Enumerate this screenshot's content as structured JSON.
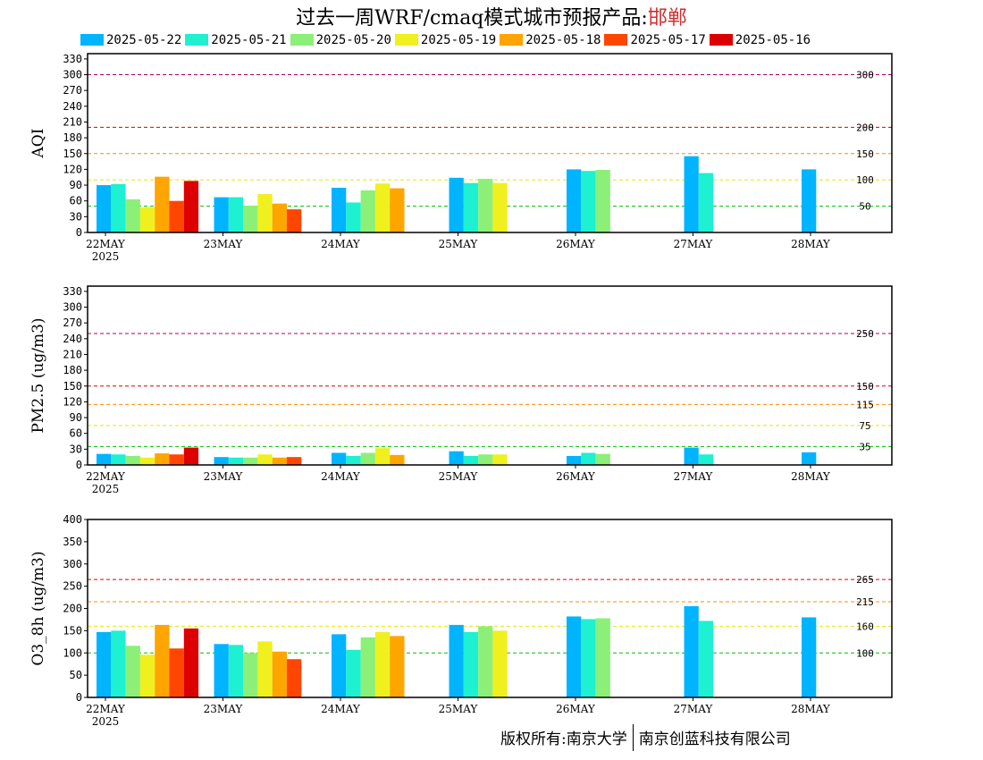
{
  "title": {
    "main": "过去一周WRF/cmaq模式城市预报产品:",
    "city": "邯郸"
  },
  "legend": [
    {
      "label": "2025-05-22",
      "color": "#00b4ff"
    },
    {
      "label": "2025-05-21",
      "color": "#1ef0d2"
    },
    {
      "label": "2025-05-20",
      "color": "#8cf078"
    },
    {
      "label": "2025-05-19",
      "color": "#f0f01e"
    },
    {
      "label": "2025-05-18",
      "color": "#ffa500"
    },
    {
      "label": "2025-05-17",
      "color": "#ff4600"
    },
    {
      "label": "2025-05-16",
      "color": "#dc0000"
    }
  ],
  "x_labels": [
    "22MAY",
    "23MAY",
    "24MAY",
    "25MAY",
    "26MAY",
    "27MAY",
    "28MAY"
  ],
  "x_year": "2025",
  "chart_data": [
    {
      "type": "bar",
      "ylabel": "AQI",
      "ylim": [
        0,
        340
      ],
      "yticks": [
        0,
        30,
        60,
        90,
        120,
        150,
        180,
        210,
        240,
        270,
        300,
        330
      ],
      "categories": [
        "22MAY",
        "23MAY",
        "24MAY",
        "25MAY",
        "26MAY",
        "27MAY",
        "28MAY"
      ],
      "thresholds": [
        {
          "value": 300,
          "label": "300",
          "color": "#b0005a"
        },
        {
          "value": 200,
          "label": "200",
          "color": "#e00000"
        },
        {
          "value": 150,
          "label": "150",
          "color": "#ff8c00"
        },
        {
          "value": 100,
          "label": "100",
          "color": "#e8e800"
        },
        {
          "value": 50,
          "label": "50",
          "color": "#00c000"
        }
      ],
      "series": [
        {
          "name": "2025-05-22",
          "values": [
            90,
            67,
            85,
            104,
            120,
            145,
            120
          ]
        },
        {
          "name": "2025-05-21",
          "values": [
            92,
            67,
            57,
            94,
            117,
            113,
            null
          ]
        },
        {
          "name": "2025-05-20",
          "values": [
            63,
            51,
            80,
            102,
            119,
            null,
            null
          ]
        },
        {
          "name": "2025-05-19",
          "values": [
            48,
            73,
            93,
            94,
            null,
            null,
            null
          ]
        },
        {
          "name": "2025-05-18",
          "values": [
            106,
            55,
            84,
            null,
            null,
            null,
            null
          ]
        },
        {
          "name": "2025-05-17",
          "values": [
            60,
            44,
            null,
            null,
            null,
            null,
            null
          ]
        },
        {
          "name": "2025-05-16",
          "values": [
            98,
            null,
            null,
            null,
            null,
            null,
            null
          ]
        }
      ]
    },
    {
      "type": "bar",
      "ylabel": "PM2.5 (ug/m3)",
      "ylim": [
        0,
        340
      ],
      "yticks": [
        0,
        30,
        60,
        90,
        120,
        150,
        180,
        210,
        240,
        270,
        300,
        330
      ],
      "categories": [
        "22MAY",
        "23MAY",
        "24MAY",
        "25MAY",
        "26MAY",
        "27MAY",
        "28MAY"
      ],
      "thresholds": [
        {
          "value": 250,
          "label": "250",
          "color": "#b0005a"
        },
        {
          "value": 150,
          "label": "150",
          "color": "#e00000"
        },
        {
          "value": 115,
          "label": "115",
          "color": "#ff8c00"
        },
        {
          "value": 75,
          "label": "75",
          "color": "#e8e800"
        },
        {
          "value": 35,
          "label": "35",
          "color": "#00c000"
        }
      ],
      "series": [
        {
          "name": "2025-05-22",
          "values": [
            21,
            15,
            23,
            26,
            17,
            33,
            24
          ]
        },
        {
          "name": "2025-05-21",
          "values": [
            20,
            14,
            17,
            17,
            23,
            20,
            null
          ]
        },
        {
          "name": "2025-05-20",
          "values": [
            17,
            14,
            23,
            20,
            21,
            null,
            null
          ]
        },
        {
          "name": "2025-05-19",
          "values": [
            14,
            20,
            32,
            20,
            null,
            null,
            null
          ]
        },
        {
          "name": "2025-05-18",
          "values": [
            22,
            14,
            19,
            null,
            null,
            null,
            null
          ]
        },
        {
          "name": "2025-05-17",
          "values": [
            20,
            15,
            null,
            null,
            null,
            null,
            null
          ]
        },
        {
          "name": "2025-05-16",
          "values": [
            33,
            null,
            null,
            null,
            null,
            null,
            null
          ]
        }
      ]
    },
    {
      "type": "bar",
      "ylabel": "O3_8h (ug/m3)",
      "ylim": [
        0,
        400
      ],
      "yticks": [
        0,
        50,
        100,
        150,
        200,
        250,
        300,
        350,
        400
      ],
      "categories": [
        "22MAY",
        "23MAY",
        "24MAY",
        "25MAY",
        "26MAY",
        "27MAY",
        "28MAY"
      ],
      "thresholds": [
        {
          "value": 265,
          "label": "265",
          "color": "#e00000"
        },
        {
          "value": 215,
          "label": "215",
          "color": "#ff8c00"
        },
        {
          "value": 160,
          "label": "160",
          "color": "#e8e800"
        },
        {
          "value": 100,
          "label": "100",
          "color": "#00c000"
        }
      ],
      "series": [
        {
          "name": "2025-05-22",
          "values": [
            147,
            120,
            142,
            163,
            182,
            205,
            180
          ]
        },
        {
          "name": "2025-05-21",
          "values": [
            150,
            118,
            107,
            147,
            176,
            172,
            null
          ]
        },
        {
          "name": "2025-05-20",
          "values": [
            116,
            100,
            135,
            160,
            178,
            null,
            null
          ]
        },
        {
          "name": "2025-05-19",
          "values": [
            96,
            126,
            147,
            150,
            null,
            null,
            null
          ]
        },
        {
          "name": "2025-05-18",
          "values": [
            163,
            103,
            138,
            null,
            null,
            null,
            null
          ]
        },
        {
          "name": "2025-05-17",
          "values": [
            110,
            86,
            null,
            null,
            null,
            null,
            null
          ]
        },
        {
          "name": "2025-05-16",
          "values": [
            155,
            null,
            null,
            null,
            null,
            null,
            null
          ]
        }
      ]
    }
  ],
  "copyright": {
    "left": "版权所有:南京大学",
    "right": "南京创蓝科技有限公司"
  }
}
